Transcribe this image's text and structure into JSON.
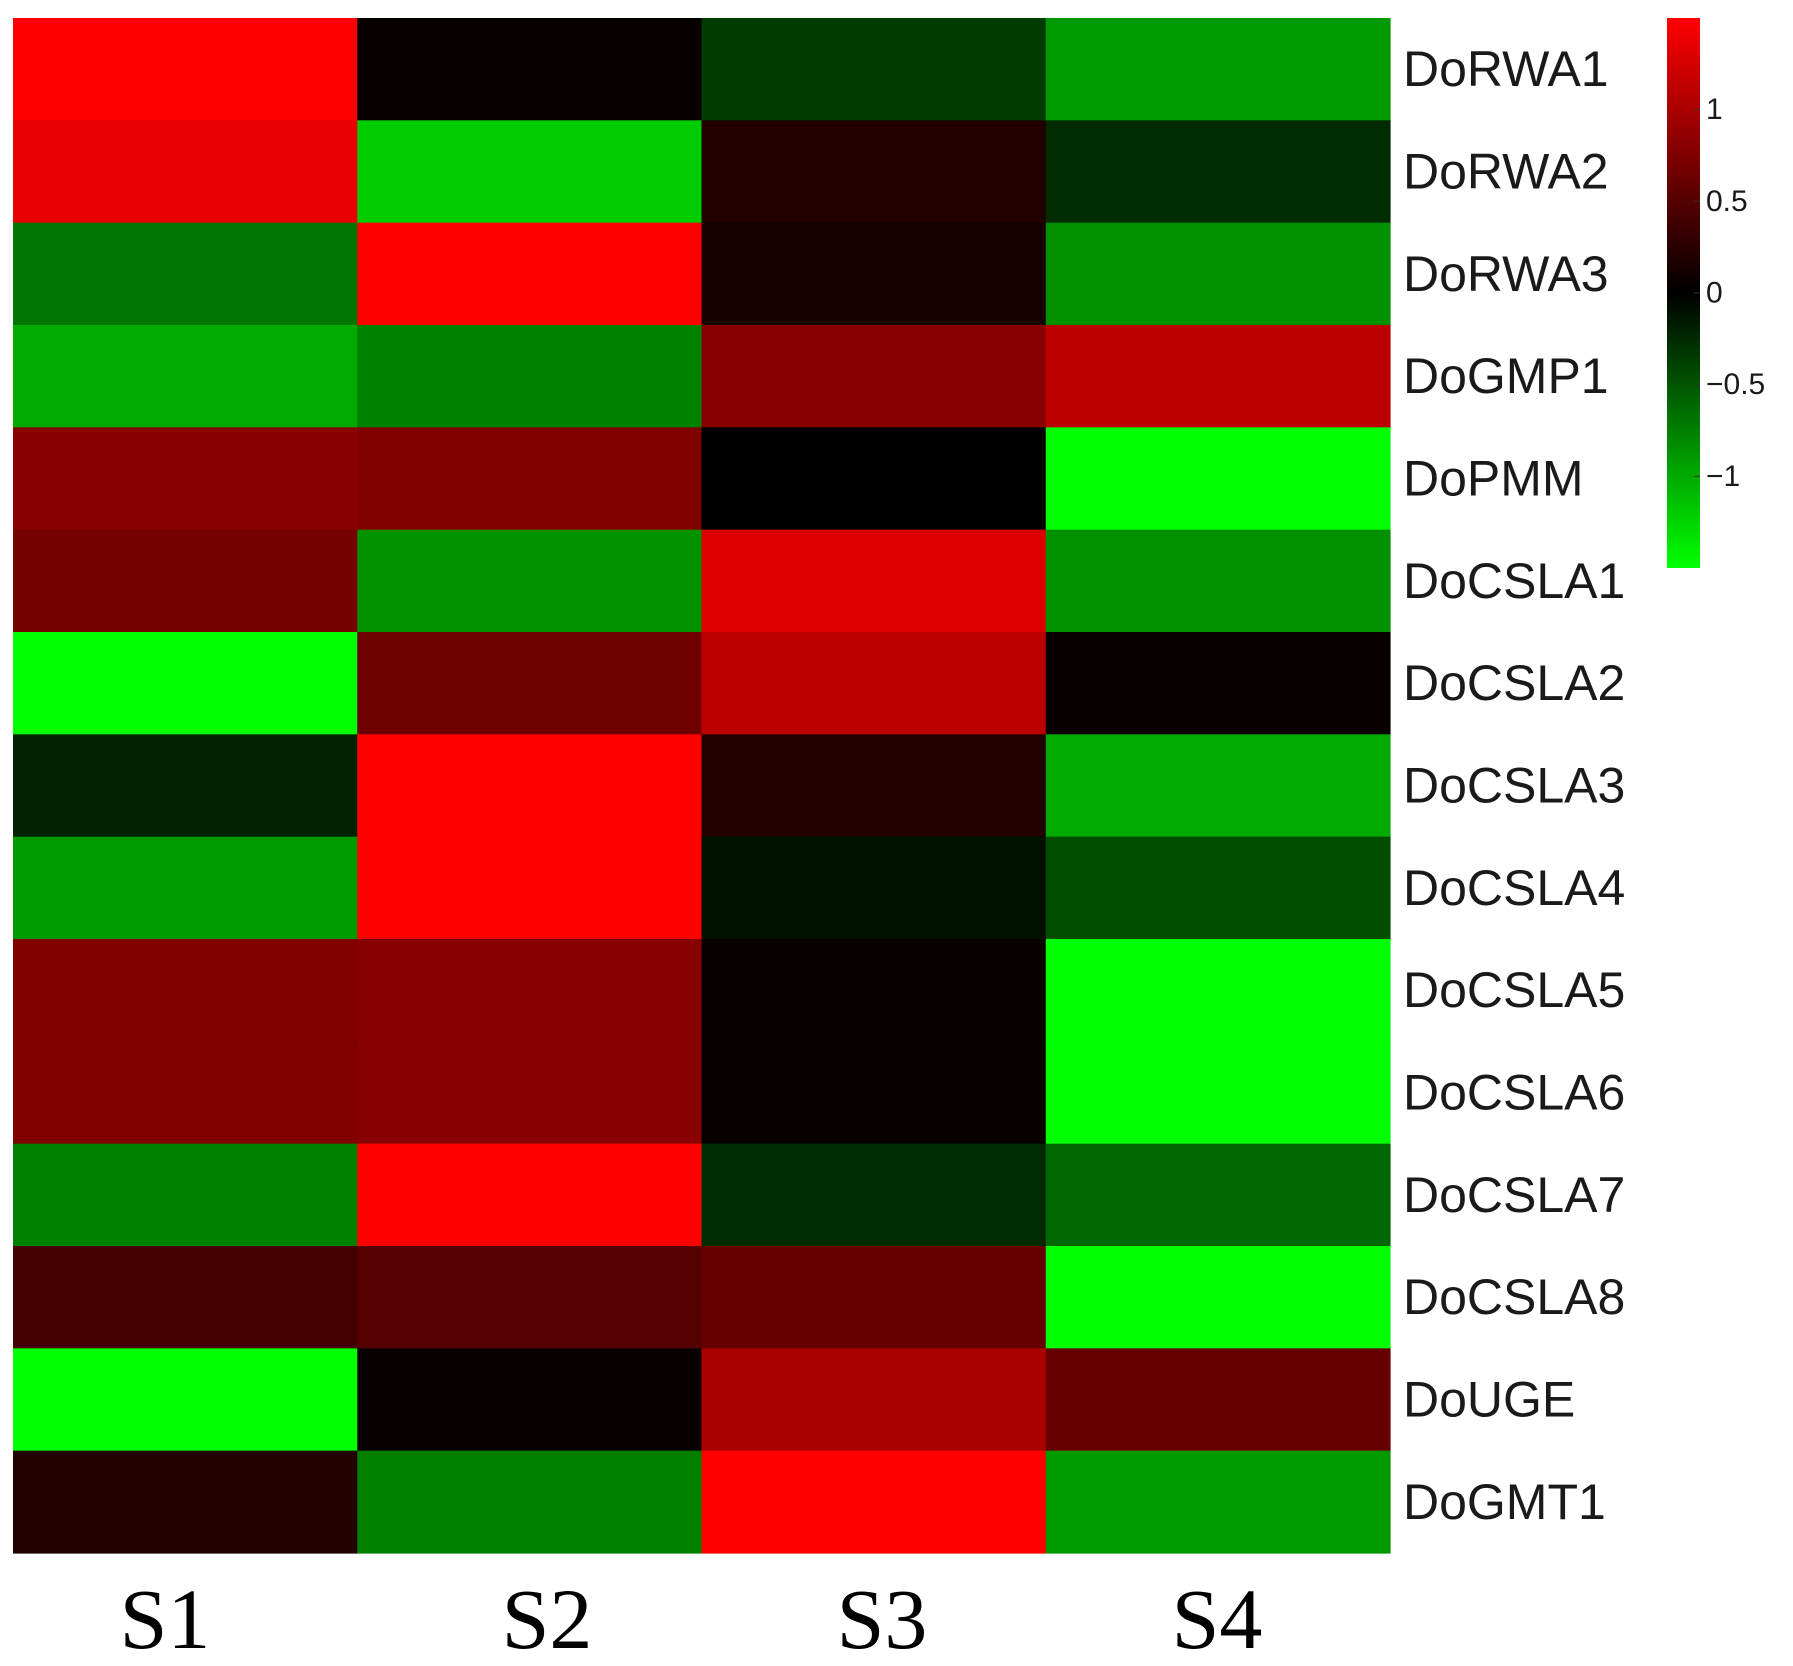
{
  "chart_data": {
    "type": "heatmap",
    "title": "",
    "rows": [
      "DoRWA1",
      "DoRWA2",
      "DoRWA3",
      "DoGMP1",
      "DoPMM",
      "DoCSLA1",
      "DoCSLA2",
      "DoCSLA3",
      "DoCSLA4",
      "DoCSLA5",
      "DoCSLA6",
      "DoCSLA7",
      "DoCSLA8",
      "DoUGE",
      "DoGMT1"
    ],
    "columns": [
      "S1",
      "S2",
      "S3",
      "S4"
    ],
    "values": [
      [
        1.5,
        0.05,
        -0.35,
        -0.9
      ],
      [
        1.35,
        -1.2,
        0.2,
        -0.25
      ],
      [
        -0.7,
        1.5,
        0.15,
        -0.85
      ],
      [
        -1.0,
        -0.75,
        0.8,
        1.1
      ],
      [
        0.8,
        0.75,
        0.0,
        -1.5
      ],
      [
        0.7,
        -0.85,
        1.3,
        -0.85
      ],
      [
        -1.5,
        0.65,
        1.1,
        0.05
      ],
      [
        -0.2,
        1.5,
        0.2,
        -1.0
      ],
      [
        -0.9,
        1.5,
        -0.1,
        -0.45
      ],
      [
        0.75,
        0.8,
        0.05,
        -1.5
      ],
      [
        0.75,
        0.8,
        0.05,
        -1.5
      ],
      [
        -0.75,
        1.5,
        -0.25,
        -0.6
      ],
      [
        0.4,
        0.5,
        0.6,
        -1.5
      ],
      [
        -1.5,
        0.05,
        1.0,
        0.6
      ],
      [
        0.2,
        -0.75,
        1.5,
        -0.9
      ]
    ],
    "color_scale": {
      "min": -1.5,
      "max": 1.5,
      "low_color": "#00ff00",
      "mid_color": "#000000",
      "high_color": "#ff0000"
    },
    "colorbar": {
      "ticks": [
        1,
        0.5,
        0,
        -0.5,
        -1
      ],
      "tick_labels": [
        "1",
        "0.5",
        "0",
        "−0.5",
        "−1"
      ],
      "placement": "top-right"
    },
    "xlabel": "",
    "ylabel": ""
  }
}
